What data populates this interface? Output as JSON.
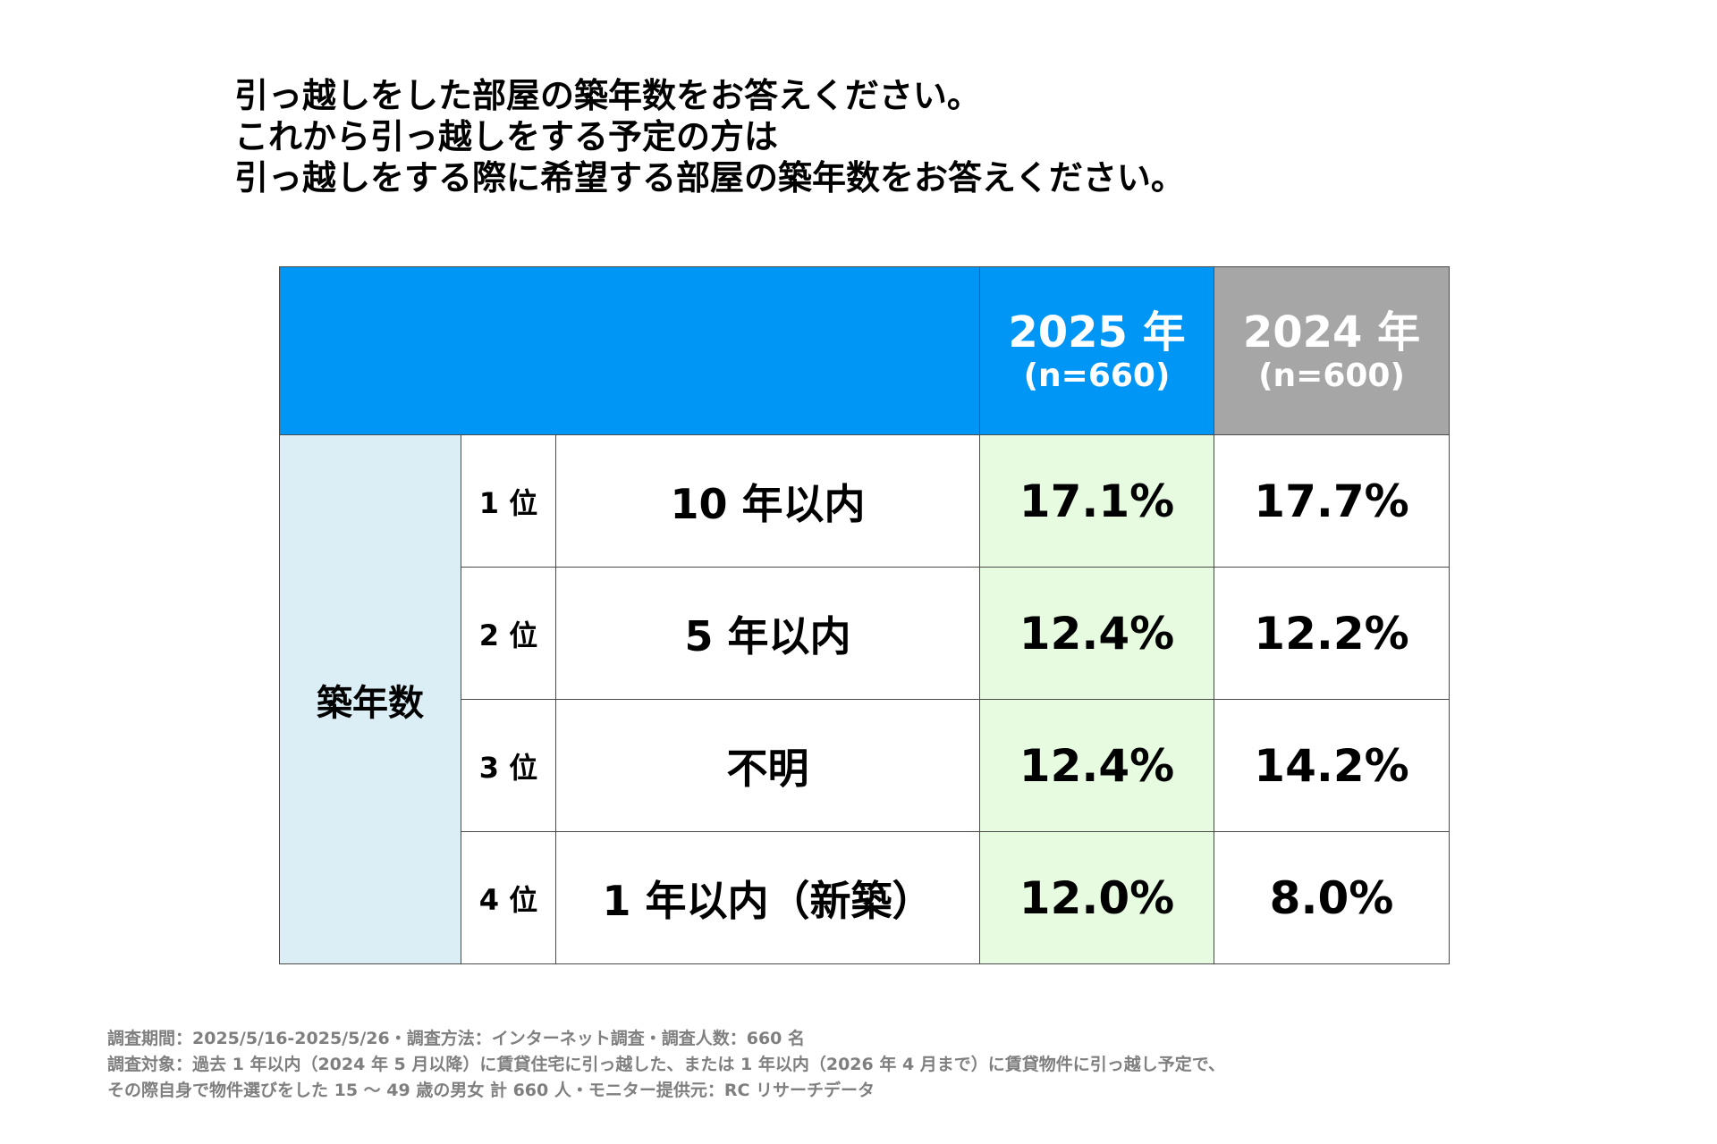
{
  "title": {
    "line1": "引っ越しをした部屋の築年数をお答えください。",
    "line2": "これから引っ越しをする予定の方は",
    "line3": "引っ越しをする際に希望する部屋の築年数をお答えください。"
  },
  "colors": {
    "header_2025": "#0096f5",
    "header_2024": "#a6a6a6",
    "row_header": "#dbeef5",
    "highlight_2025": "#e7fbe0",
    "footnote": "#7f7f7f"
  },
  "chart_data": {
    "type": "table",
    "title": "引っ越しをした部屋の築年数をお答えください。これから引っ越しをする予定の方は引っ越しをする際に希望する部屋の築年数をお答えください。",
    "row_group_label": "築年数",
    "columns": [
      {
        "year": "2025 年",
        "n": "(n=660)"
      },
      {
        "year": "2024 年",
        "n": "(n=600)"
      }
    ],
    "rows": [
      {
        "rank": "1 位",
        "item": "10 年以内",
        "v2025": "17.1%",
        "v2024": "17.7%"
      },
      {
        "rank": "2 位",
        "item": "5 年以内",
        "v2025": "12.4%",
        "v2024": "12.2%"
      },
      {
        "rank": "3 位",
        "item": "不明",
        "v2025": "12.4%",
        "v2024": "14.2%"
      },
      {
        "rank": "4 位",
        "item": "1 年以内（新築）",
        "v2025": "12.0%",
        "v2024": "8.0%"
      }
    ]
  },
  "footnote": {
    "line1": "調査期間：2025/5/16-2025/5/26・調査方法：インターネット調査・調査人数：660 名",
    "line2": "調査対象：過去 1 年以内（2024 年 5 月以降）に賃貸住宅に引っ越した、または 1 年以内（2026 年 4 月まで）に賃貸物件に引っ越し予定で、",
    "line3": "その際自身で物件選びをした 15 ～ 49 歳の男女 計 660 人・モニター提供元：RC リサーチデータ"
  }
}
